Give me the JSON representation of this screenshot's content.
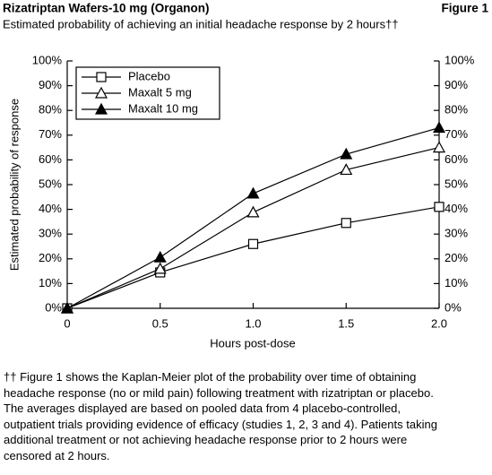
{
  "chart_data": {
    "type": "line",
    "title": "Rizatriptan Wafers-10 mg (Organon)",
    "figure_label": "Figure 1",
    "subtitle": "Estimated probability of achieving an initial headache response by 2 hours††",
    "x_label": "Hours post-dose",
    "y_label": "Estimated probability of response",
    "x": [
      0,
      0.5,
      1.0,
      1.5,
      2.0
    ],
    "series": [
      {
        "name": "Placebo",
        "color": "#000000",
        "marker": "square-open",
        "values": [
          0,
          14.5,
          26,
          34.5,
          41
        ]
      },
      {
        "name": "Maxalt 5 mg",
        "color": "#000000",
        "marker": "triangle-open",
        "values": [
          0,
          16,
          38.8,
          56,
          65
        ]
      },
      {
        "name": "Maxalt 10 mg",
        "color": "#000000",
        "marker": "triangle-filled",
        "values": [
          0,
          20.6,
          46.4,
          62.3,
          73
        ]
      }
    ],
    "xlim": [
      0,
      2
    ],
    "xticks": [
      0,
      0.5,
      {
        "value": 1,
        "label": "1.0"
      },
      1.5,
      {
        "value": 2,
        "label": "2.0"
      }
    ],
    "ylim": [
      0,
      100
    ],
    "yticks": [
      {
        "value": 0,
        "label": "0%"
      },
      {
        "value": 10,
        "label": "10%"
      },
      {
        "value": 20,
        "label": "20%"
      },
      {
        "value": 30,
        "label": "30%"
      },
      {
        "value": 40,
        "label": "40%"
      },
      {
        "value": 50,
        "label": "50%"
      },
      {
        "value": 60,
        "label": "60%"
      },
      {
        "value": 70,
        "label": "70%"
      },
      {
        "value": 80,
        "label": "80%"
      },
      {
        "value": 90,
        "label": "90%"
      },
      {
        "value": 100,
        "label": "100%"
      }
    ],
    "legend": "upper left",
    "footnote": [
      "†† Figure 1 shows the Kaplan-Meier plot of the probability over time of obtaining",
      "headache response (no or mild pain) following treatment with rizatriptan or placebo.",
      "The averages displayed are based on pooled data from 4 placebo-controlled,",
      "outpatient trials providing evidence of efficacy (studies 1, 2, 3 and 4). Patients taking",
      "additional treatment or not achieving headache response prior to 2 hours were",
      "censored at 2 hours."
    ]
  }
}
